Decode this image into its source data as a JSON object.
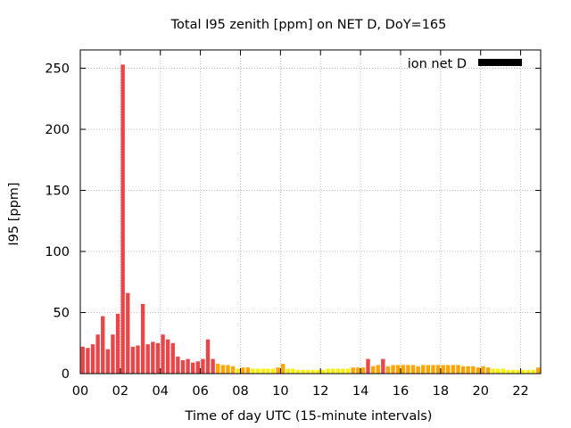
{
  "chart_data": {
    "type": "bar",
    "title": "Total I95 zenith [ppm] on NET D, DoY=165",
    "xlabel": "Time of day UTC (15-minute intervals)",
    "ylabel": "I95 [ppm]",
    "xlim": [
      0,
      23
    ],
    "ylim": [
      0,
      265
    ],
    "grid": true,
    "legend_position": "top-right",
    "series": [
      {
        "name": "ion net D",
        "color": "#000000",
        "bar_color_scale": [
          {
            "min": 0,
            "color": "#ffee00"
          },
          {
            "min": 4.5,
            "color": "#ffa500"
          },
          {
            "min": 9,
            "color": "#e8474a"
          }
        ],
        "x": [
          0.0,
          0.25,
          0.5,
          0.75,
          1.0,
          1.25,
          1.5,
          1.75,
          2.0,
          2.25,
          2.5,
          2.75,
          3.0,
          3.25,
          3.5,
          3.75,
          4.0,
          4.25,
          4.5,
          4.75,
          5.0,
          5.25,
          5.5,
          5.75,
          6.0,
          6.25,
          6.5,
          6.75,
          7.0,
          7.25,
          7.5,
          7.75,
          8.0,
          8.25,
          8.5,
          8.75,
          9.0,
          9.25,
          9.5,
          9.75,
          10.0,
          10.25,
          10.5,
          10.75,
          11.0,
          11.25,
          11.5,
          11.75,
          12.0,
          12.25,
          12.5,
          12.75,
          13.0,
          13.25,
          13.5,
          13.75,
          14.0,
          14.25,
          14.5,
          14.75,
          15.0,
          15.25,
          15.5,
          15.75,
          16.0,
          16.25,
          16.5,
          16.75,
          17.0,
          17.25,
          17.5,
          17.75,
          18.0,
          18.25,
          18.5,
          18.75,
          19.0,
          19.25,
          19.5,
          19.75,
          20.0,
          20.25,
          20.5,
          20.75,
          21.0,
          21.25,
          21.5,
          21.75,
          22.0,
          22.25,
          22.5,
          22.75
        ],
        "values": [
          22,
          21,
          24,
          32,
          47,
          20,
          32,
          49,
          253,
          66,
          22,
          23,
          57,
          24,
          26,
          25,
          32,
          28,
          25,
          14,
          11,
          12,
          9,
          10,
          12,
          28,
          12,
          8,
          7,
          7,
          6,
          4,
          5,
          5,
          4,
          4,
          4,
          4,
          4,
          5,
          8,
          4,
          4,
          3,
          3,
          3,
          3,
          3,
          3,
          4,
          4,
          4,
          4,
          4,
          5,
          5,
          5,
          12,
          6,
          7,
          12,
          6,
          7,
          7,
          7,
          7,
          7,
          6,
          7,
          7,
          7,
          7,
          7,
          7,
          7,
          7,
          6,
          6,
          6,
          5,
          6,
          5,
          4,
          4,
          4,
          3,
          3,
          3,
          3,
          3,
          3,
          5
        ]
      }
    ],
    "xticks": [
      {
        "value": 0,
        "label": "00"
      },
      {
        "value": 2,
        "label": "02"
      },
      {
        "value": 4,
        "label": "04"
      },
      {
        "value": 6,
        "label": "06"
      },
      {
        "value": 8,
        "label": "08"
      },
      {
        "value": 10,
        "label": "10"
      },
      {
        "value": 12,
        "label": "12"
      },
      {
        "value": 14,
        "label": "14"
      },
      {
        "value": 16,
        "label": "16"
      },
      {
        "value": 18,
        "label": "18"
      },
      {
        "value": 20,
        "label": "20"
      },
      {
        "value": 22,
        "label": "22"
      }
    ],
    "yticks": [
      {
        "value": 0,
        "label": "0"
      },
      {
        "value": 50,
        "label": "50"
      },
      {
        "value": 100,
        "label": "100"
      },
      {
        "value": 150,
        "label": "150"
      },
      {
        "value": 200,
        "label": "200"
      },
      {
        "value": 250,
        "label": "250"
      }
    ]
  }
}
